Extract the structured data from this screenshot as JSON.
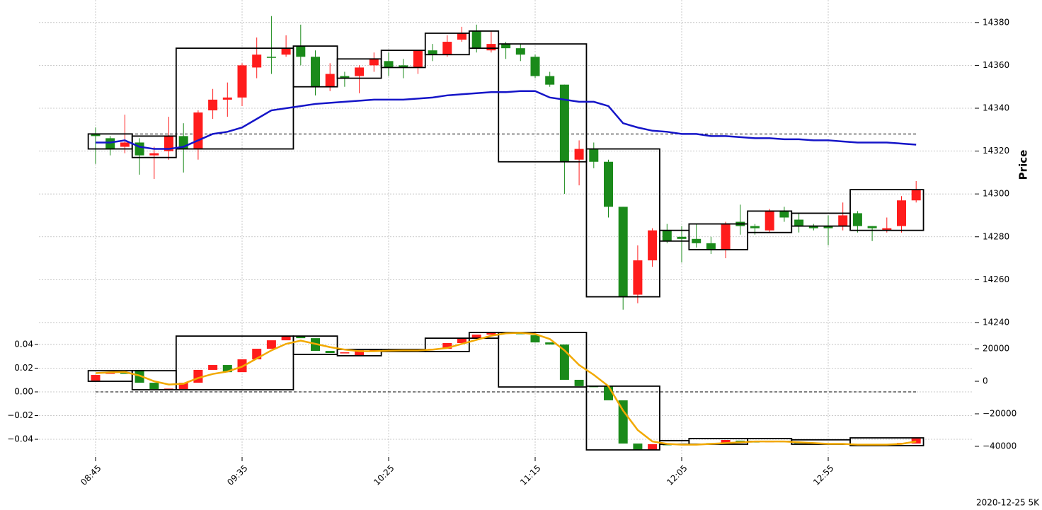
{
  "chart_data": {
    "type": "candlestick",
    "footer": "2020-12-25 5K",
    "y_label": "Price",
    "categories": [
      "08:45",
      null,
      null,
      null,
      null,
      null,
      null,
      null,
      null,
      null,
      "09:35",
      null,
      null,
      null,
      null,
      null,
      null,
      null,
      null,
      null,
      "10:25",
      null,
      null,
      null,
      null,
      null,
      null,
      null,
      null,
      null,
      "11:15",
      null,
      null,
      null,
      null,
      null,
      null,
      null,
      null,
      null,
      "12:05",
      null,
      null,
      null,
      null,
      null,
      null,
      null,
      null,
      null,
      "12:55",
      null,
      null,
      null,
      null,
      null,
      null
    ],
    "ylim": [
      14238,
      14390.5
    ],
    "yticks": [
      14240,
      14260,
      14280,
      14300,
      14320,
      14340,
      14360,
      14380
    ],
    "grid": true,
    "up_color": "#ff1c1c",
    "down_color": "#1a8a1a",
    "open": [
      14328,
      14326,
      14322,
      14324,
      14318,
      14320,
      14327,
      14321,
      14339,
      14344,
      14345,
      14359,
      14364,
      14365,
      14369,
      14364,
      14350,
      14355,
      14355,
      14360,
      14362,
      14360,
      14359,
      14367,
      14365,
      14372,
      14376,
      14367,
      14370,
      14368,
      14364,
      14355,
      14351,
      14316,
      14321,
      14315,
      14294,
      14253,
      14269,
      14283,
      14280,
      14279,
      14277,
      14274,
      14287,
      14285,
      14283,
      14292,
      14288,
      14285,
      14285,
      14285,
      14291,
      14285,
      14283,
      14285,
      14297
    ],
    "high": [
      14331,
      14327,
      14337,
      14326,
      14322,
      14336,
      14333,
      14339,
      14349,
      14352,
      14361,
      14373,
      14383,
      14374,
      14379,
      14367,
      14361,
      14357,
      14360,
      14366,
      14366,
      14363,
      14367,
      14370,
      14374,
      14378,
      14379,
      14376,
      14371,
      14370,
      14365,
      14357,
      14351,
      14325,
      14324,
      14316,
      14294,
      14276,
      14284,
      14286,
      14285,
      14286,
      14280,
      14287,
      14295,
      14286,
      14293,
      14294,
      14291,
      14286,
      14290,
      14296,
      14292,
      14285,
      14289,
      14299,
      14306
    ],
    "low": [
      14314,
      14318,
      14319,
      14309,
      14307,
      14316,
      14310,
      14316,
      14335,
      14336,
      14341,
      14354,
      14356,
      14364,
      14360,
      14346,
      14348,
      14350,
      14347,
      14357,
      14355,
      14354,
      14356,
      14362,
      14364,
      14371,
      14366,
      14366,
      14363,
      14362,
      14354,
      14350,
      14300,
      14304,
      14312,
      14289,
      14246,
      14249,
      14266,
      14277,
      14268,
      14275,
      14272,
      14270,
      14281,
      14281,
      14282,
      14287,
      14282,
      14283,
      14276,
      14283,
      14282,
      14278,
      14282,
      14282,
      14296
    ],
    "close": [
      14327,
      14321,
      14324,
      14318,
      14319,
      14327,
      14321,
      14338,
      14344,
      14345,
      14360,
      14365,
      14364,
      14368,
      14364,
      14350,
      14356,
      14354,
      14359,
      14363,
      14359,
      14359,
      14367,
      14365,
      14371,
      14375,
      14368,
      14370,
      14368,
      14365,
      14355,
      14351,
      14315,
      14321,
      14315,
      14294,
      14252,
      14269,
      14283,
      14278,
      14279,
      14277,
      14274,
      14286,
      14285,
      14284,
      14292,
      14289,
      14285,
      14284,
      14284,
      14290,
      14285,
      14284,
      14284,
      14297,
      14302
    ],
    "average": {
      "color": "#1515c8",
      "values": [
        14324,
        14324,
        14325,
        14322,
        14321,
        14321,
        14322,
        14325,
        14328,
        14329,
        14331,
        14335,
        14339,
        14340,
        14341,
        14342,
        14342.5,
        14343,
        14343.5,
        14344,
        14344,
        14344,
        14344.5,
        14345,
        14346,
        14346.5,
        14347,
        14347.5,
        14347.5,
        14348,
        14348,
        14345,
        14344,
        14343,
        14343,
        14341,
        14333,
        14331,
        14329.5,
        14329,
        14328,
        14328,
        14327,
        14327,
        14326.5,
        14326,
        14326,
        14325.5,
        14325.5,
        14325,
        14325,
        14324.5,
        14324,
        14324,
        14324,
        14323.5,
        14323
      ]
    },
    "reference": 14328,
    "boxes": [
      {
        "start": 0,
        "end": 2,
        "top": 14328,
        "bottom": 14321
      },
      {
        "start": 3,
        "end": 5,
        "top": 14327,
        "bottom": 14317
      },
      {
        "start": 6,
        "end": 13,
        "top": 14368,
        "bottom": 14321
      },
      {
        "start": 14,
        "end": 16,
        "top": 14369,
        "bottom": 14350
      },
      {
        "start": 17,
        "end": 19,
        "top": 14363,
        "bottom": 14354
      },
      {
        "start": 20,
        "end": 22,
        "top": 14367,
        "bottom": 14359
      },
      {
        "start": 23,
        "end": 25,
        "top": 14375,
        "bottom": 14365
      },
      {
        "start": 26,
        "end": 27,
        "top": 14376,
        "bottom": 14368
      },
      {
        "start": 28,
        "end": 33,
        "top": 14370,
        "bottom": 14315
      },
      {
        "start": 34,
        "end": 38,
        "top": 14321,
        "bottom": 14252
      },
      {
        "start": 39,
        "end": 40,
        "top": 14283,
        "bottom": 14278
      },
      {
        "start": 41,
        "end": 44,
        "top": 14286,
        "bottom": 14274
      },
      {
        "start": 45,
        "end": 47,
        "top": 14292,
        "bottom": 14282
      },
      {
        "start": 48,
        "end": 51,
        "top": 14291,
        "bottom": 14285
      },
      {
        "start": 52,
        "end": 56,
        "top": 14302,
        "bottom": 14283
      }
    ],
    "lower": {
      "ylim": [
        -0.0543,
        0.0531
      ],
      "yticks": [
        {
          "value": -0.04,
          "label": "−0.04"
        },
        {
          "value": -0.02,
          "label": "−0.02"
        },
        {
          "value": 0,
          "label": "0.00"
        },
        0.02,
        0.04
      ],
      "y2lim": [
        -46100,
        32200
      ],
      "y2ticks": [
        {
          "value": -40000,
          "label": "−40000"
        },
        {
          "value": -20000,
          "label": "−20000"
        },
        0,
        20000
      ],
      "reference": 0,
      "open": [
        400,
        4800,
        5200,
        7000,
        -900,
        -4800,
        -4800,
        -900,
        7000,
        10000,
        5600,
        13500,
        20000,
        25200,
        27800,
        26500,
        18700,
        17400,
        16100,
        19100,
        19500,
        19300,
        19500,
        19700,
        20000,
        23500,
        26500,
        28700,
        30000,
        29600,
        28300,
        23900,
        22600,
        900,
        -3000,
        -3200,
        -11700,
        -38300,
        -42200,
        -38700,
        -38300,
        -38500,
        -38000,
        -37800,
        -36500,
        -37000,
        -37500,
        -36800,
        -37500,
        -38000,
        -38200,
        -38300,
        -38800,
        -39000,
        -39000,
        -38500,
        -38300
      ],
      "close": [
        3900,
        5200,
        4800,
        -900,
        -4800,
        -4500,
        -900,
        7000,
        10000,
        5600,
        13500,
        20000,
        25200,
        27800,
        26500,
        18700,
        17400,
        17800,
        19100,
        19300,
        19300,
        19500,
        19700,
        19900,
        23500,
        26500,
        28700,
        30000,
        29600,
        29400,
        23900,
        22600,
        900,
        -3000,
        -3200,
        -11700,
        -38300,
        -42200,
        -38700,
        -38900,
        -39100,
        -38800,
        -38400,
        -36100,
        -37000,
        -37300,
        -36600,
        -37200,
        -37900,
        -38200,
        -38500,
        -38600,
        -39200,
        -39300,
        -38900,
        -37900,
        -35200
      ],
      "line": {
        "color": "#f2a900",
        "values": [
          5000,
          5500,
          5700,
          3500,
          0,
          -2000,
          -1500,
          2000,
          4500,
          6000,
          9000,
          14000,
          19000,
          23000,
          25000,
          23000,
          21000,
          19500,
          18500,
          18500,
          18800,
          19000,
          19000,
          19500,
          20500,
          23000,
          25500,
          28000,
          29500,
          29800,
          29000,
          26000,
          19000,
          10000,
          4000,
          -3000,
          -18000,
          -30000,
          -37000,
          -38500,
          -39000,
          -39000,
          -38500,
          -38000,
          -37500,
          -37000,
          -37000,
          -37000,
          -37500,
          -38000,
          -38500,
          -38500,
          -39000,
          -39000,
          -39000,
          -38500,
          -37000
        ]
      },
      "boxes": [
        {
          "start": 0,
          "end": 2,
          "top": 6500,
          "bottom": 0
        },
        {
          "start": 3,
          "end": 5,
          "top": 6500,
          "bottom": -5200
        },
        {
          "start": 6,
          "end": 13,
          "top": 27800,
          "bottom": -5200
        },
        {
          "start": 14,
          "end": 16,
          "top": 27800,
          "bottom": 16500
        },
        {
          "start": 17,
          "end": 19,
          "top": 19600,
          "bottom": 15700
        },
        {
          "start": 20,
          "end": 22,
          "top": 19600,
          "bottom": 18300
        },
        {
          "start": 23,
          "end": 25,
          "top": 26500,
          "bottom": 18300
        },
        {
          "start": 26,
          "end": 27,
          "top": 30000,
          "bottom": 26500
        },
        {
          "start": 28,
          "end": 33,
          "top": 30000,
          "bottom": -3500
        },
        {
          "start": 34,
          "end": 38,
          "top": -3000,
          "bottom": -42200
        },
        {
          "start": 39,
          "end": 40,
          "top": -36500,
          "bottom": -38700
        },
        {
          "start": 41,
          "end": 44,
          "top": -35200,
          "bottom": -38700
        },
        {
          "start": 45,
          "end": 47,
          "top": -35200,
          "bottom": -37000
        },
        {
          "start": 48,
          "end": 51,
          "top": -36000,
          "bottom": -38700
        },
        {
          "start": 52,
          "end": 56,
          "top": -34800,
          "bottom": -39600
        }
      ]
    }
  }
}
